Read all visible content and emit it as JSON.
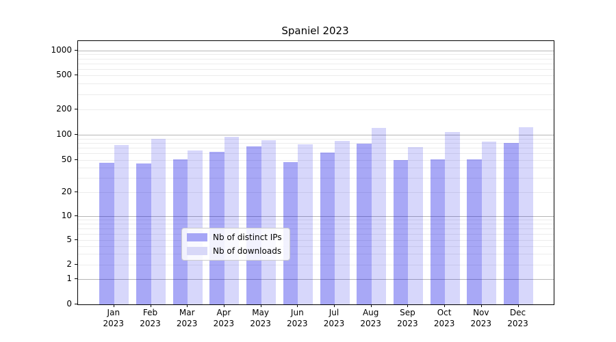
{
  "chart_data": {
    "type": "bar",
    "title": "Spaniel 2023",
    "categories": [
      {
        "month": "Jan",
        "year": "2023"
      },
      {
        "month": "Feb",
        "year": "2023"
      },
      {
        "month": "Mar",
        "year": "2023"
      },
      {
        "month": "Apr",
        "year": "2023"
      },
      {
        "month": "May",
        "year": "2023"
      },
      {
        "month": "Jun",
        "year": "2023"
      },
      {
        "month": "Jul",
        "year": "2023"
      },
      {
        "month": "Aug",
        "year": "2023"
      },
      {
        "month": "Sep",
        "year": "2023"
      },
      {
        "month": "Oct",
        "year": "2023"
      },
      {
        "month": "Nov",
        "year": "2023"
      },
      {
        "month": "Dec",
        "year": "2023"
      }
    ],
    "series": [
      {
        "name": "Nb of distinct IPs",
        "color": "#a6a6f6",
        "fill": "rgba(5,5,228,0.35)",
        "values": [
          46,
          45,
          51,
          63,
          73,
          47,
          62,
          79,
          50,
          51,
          51,
          80
        ]
      },
      {
        "name": "Nb of downloads",
        "color": "#d8d8f8",
        "fill": "rgba(5,5,228,0.16)",
        "values": [
          75,
          90,
          65,
          94,
          86,
          77,
          84,
          121,
          71,
          108,
          83,
          123
        ]
      }
    ],
    "yticks": [
      0,
      1,
      2,
      5,
      10,
      20,
      50,
      100,
      200,
      500,
      1000
    ],
    "yscale": "symlog",
    "ylim": [
      0,
      1300
    ],
    "xlabel": "",
    "ylabel": "",
    "grid": "both",
    "legend_position": "lower center",
    "axis_color": "#000000",
    "grid_major_color": "#b6b6b6",
    "grid_minor_color": "#ececec"
  }
}
